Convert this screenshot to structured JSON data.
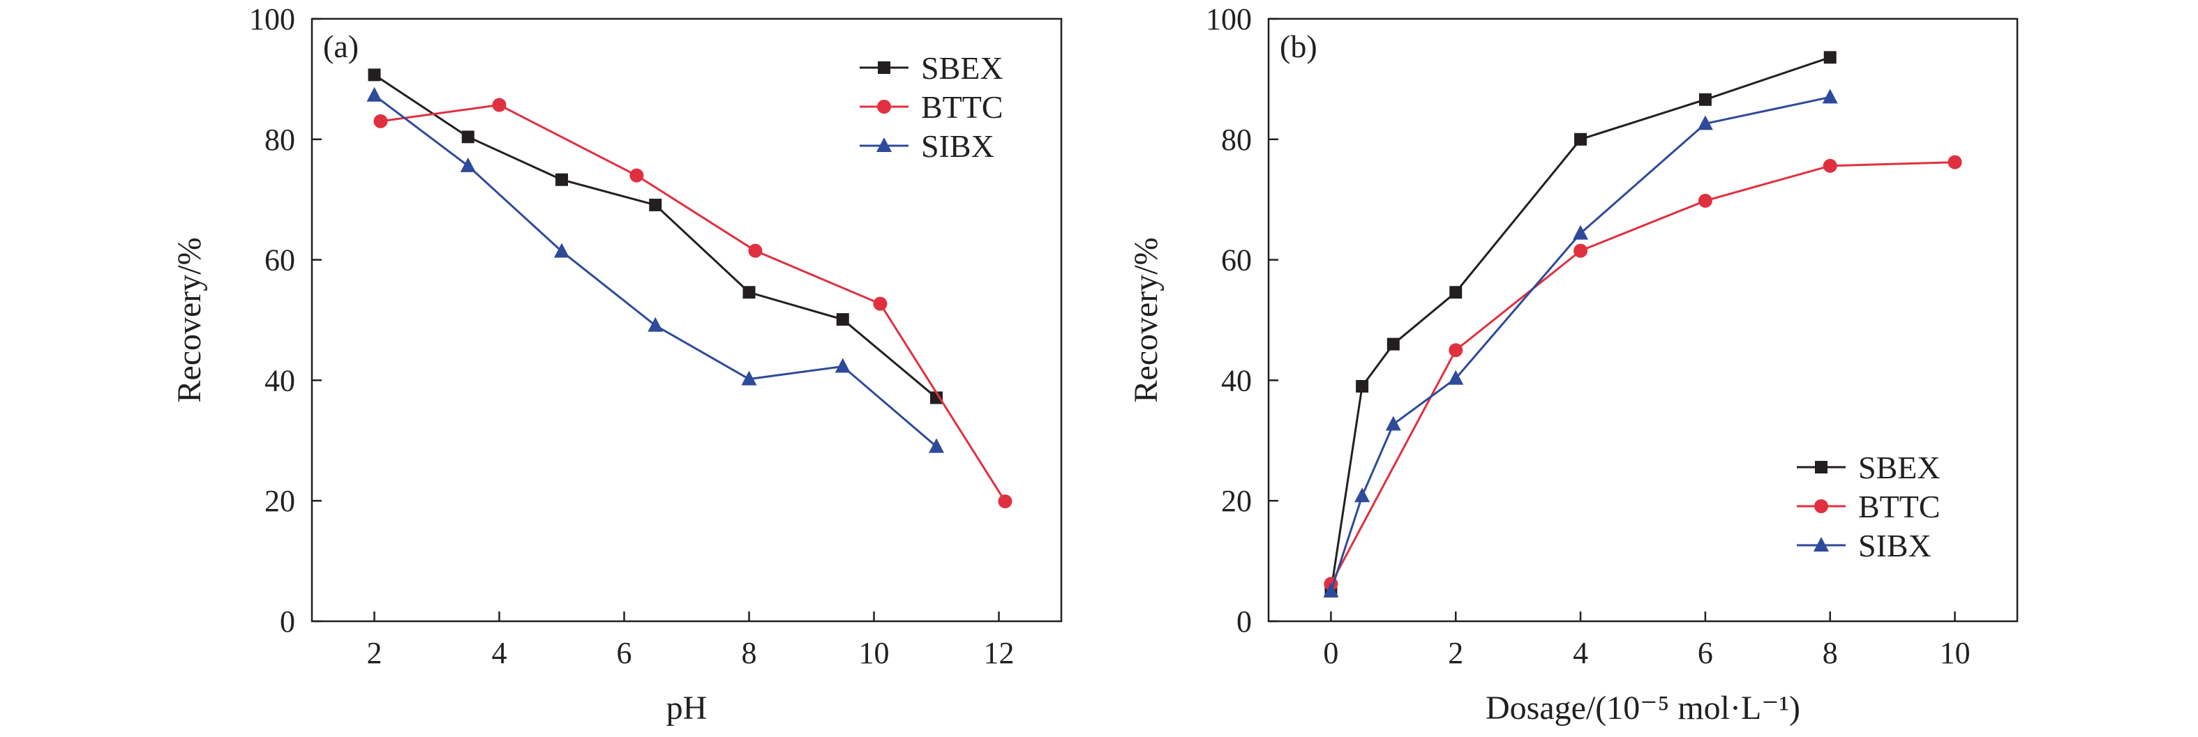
{
  "chart_data": [
    {
      "type": "line",
      "panel_label": "(a)",
      "xlabel": "pH",
      "ylabel": "Recovery/%",
      "xlim": [
        1,
        13
      ],
      "ylim": [
        0,
        100
      ],
      "xticks": [
        2,
        4,
        6,
        8,
        10,
        12
      ],
      "yticks": [
        0,
        20,
        40,
        60,
        80,
        100
      ],
      "legend_position": "top-right",
      "series": [
        {
          "name": "SBEX",
          "color": "#231f20",
          "marker": "square",
          "x": [
            2,
            3.5,
            5,
            6.5,
            8,
            9.5,
            11
          ],
          "y": [
            90.7,
            80.4,
            73.3,
            69.1,
            54.6,
            50.1,
            37.1
          ]
        },
        {
          "name": "BTTC",
          "color": "#e03040",
          "marker": "circle",
          "x": [
            2.1,
            4,
            6.2,
            8.1,
            10.1,
            12.1
          ],
          "y": [
            83.0,
            85.7,
            74.0,
            61.5,
            52.7,
            19.9
          ]
        },
        {
          "name": "SIBX",
          "color": "#2e4a9a",
          "marker": "triangle",
          "x": [
            2,
            3.5,
            5,
            6.5,
            8,
            9.5,
            11
          ],
          "y": [
            87.3,
            75.6,
            61.4,
            49.1,
            40.2,
            42.3,
            29.0
          ]
        }
      ]
    },
    {
      "type": "line",
      "panel_label": "(b)",
      "xlabel": "Dosage/(10⁻⁵ mol·L⁻¹)",
      "ylabel": "Recovery/%",
      "xlim": [
        -1,
        11
      ],
      "ylim": [
        0,
        100
      ],
      "xticks": [
        0,
        2,
        4,
        6,
        8,
        10
      ],
      "yticks": [
        0,
        20,
        40,
        60,
        80,
        100
      ],
      "legend_position": "bottom-right",
      "series": [
        {
          "name": "SBEX",
          "color": "#231f20",
          "marker": "square",
          "x": [
            0,
            0.5,
            1,
            2,
            4,
            6,
            8
          ],
          "y": [
            5.0,
            39.0,
            46.0,
            54.6,
            80.0,
            86.6,
            93.6
          ]
        },
        {
          "name": "BTTC",
          "color": "#e03040",
          "marker": "circle",
          "x": [
            0,
            2,
            4,
            6,
            8,
            10
          ],
          "y": [
            6.2,
            45.0,
            61.5,
            69.8,
            75.6,
            76.2
          ]
        },
        {
          "name": "SIBX",
          "color": "#2e4a9a",
          "marker": "triangle",
          "x": [
            0,
            0.5,
            1,
            2,
            4,
            6,
            8
          ],
          "y": [
            5.0,
            20.8,
            32.7,
            40.3,
            64.4,
            82.6,
            87.0
          ]
        }
      ]
    }
  ]
}
